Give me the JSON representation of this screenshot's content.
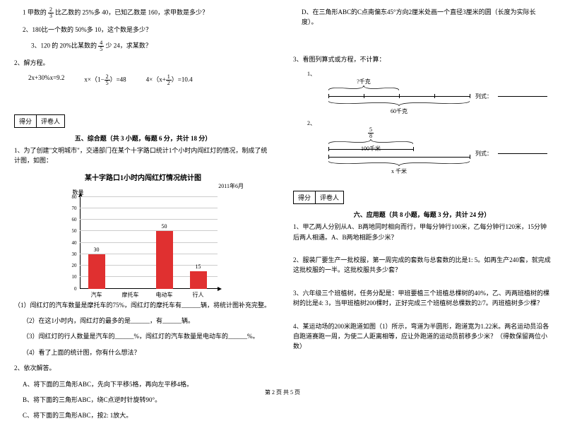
{
  "left": {
    "q1": {
      "prefix": "1 甲数的",
      "frac": {
        "num": "2",
        "den": "3"
      },
      "suffix": "比乙数的 25%多 40，已知乙数是 160，求甲数是多少？"
    },
    "q2": "2、180比一个数的 50%多 10，这个数是多少？",
    "q3": {
      "prefix": "3、120 的 20%比某数的",
      "frac": {
        "num": "4",
        "den": "5"
      },
      "suffix": "少 24，求某数？"
    },
    "q_solve": "2、解方程。",
    "eq1": "2x+30%x=9.2",
    "eq2": {
      "prefix": "x×（1−",
      "frac": {
        "num": "2",
        "den": "5"
      },
      "suffix": "）=48"
    },
    "eq3": {
      "prefix": "4×（x+",
      "frac": {
        "num": "1",
        "den": "2"
      },
      "suffix": "）=10.4"
    },
    "score_labels": [
      "得分",
      "评卷人"
    ],
    "section5_title": "五、综合题（共 3 小题，每题 6 分，共计 18 分）",
    "section5_intro": "1、为了创建\"文明城市\"，交通部门在某个十字路口统计1个小时内闯红灯的情况，制成了统计图，如图：",
    "chart": {
      "title": "某十字路口1小时内闯红灯情况统计图",
      "date": "2011年6月",
      "y_label": "数量",
      "y_ticks": [
        0,
        10,
        20,
        30,
        40,
        50,
        60,
        70,
        80
      ],
      "categories": [
        "汽车",
        "摩托车",
        "电动车",
        "行人"
      ],
      "values": [
        30,
        null,
        50,
        15
      ],
      "bar_color": "#e03030",
      "grid_color": "#cccccc"
    },
    "sub1": "（1）闯红灯的汽车数量是摩托车的75%，闯红灯的摩托车有______辆，将统计图补充完整。",
    "sub2": "（2）在这1小时内，闯红灯的最多的是______，有______辆。",
    "sub3": "（3）闯红灯的行人数量是汽车的______%，闯红灯的汽车数量是电动车的______%。",
    "sub4": "（4）看了上面的统计图，你有什么想法？",
    "q2_title": "2、依次解答。",
    "q2a": "A、将下面的三角形ABC，先向下平移5格，再向左平移4格。",
    "q2b": "B、将下面的三角形ABC，绕C点逆时针旋转90°。",
    "q2c": "C、将下面的三角形ABC，按2: 1放大。"
  },
  "right": {
    "q2d": "D、在三角形ABC的C点南偏东45°方向2厘米处画一个直径3厘米的圆（长度为实际长度）。",
    "q3_title": "3、看图列算式或方程，不计算：",
    "diag1": {
      "num": "1、",
      "top_label": "?千克",
      "bottom_label": "60千克",
      "formula_label": "列式：",
      "segments": 4,
      "top_segments": 2
    },
    "diag2": {
      "num": "2、",
      "frac": {
        "num": "5",
        "den": "8"
      },
      "middle_label": "100千米",
      "bottom_label": "x 千米",
      "formula_label": "列式："
    },
    "score_labels": [
      "得分",
      "评卷人"
    ],
    "section6_title": "六、应用题（共 8 小题，每题 3 分，共计 24 分）",
    "app1": "1、甲乙两人分别从A、B两地同时相向而行，甲每分钟行100米，乙每分钟行120米，15分钟后两人相遇。A、B两地相距多少米？",
    "app2": "2、服装厂要生产一批校服，第一周完成的套数与总套数的比是1: 5。如再生产240套，就完成这批校服的一半。这批校服共多少套？",
    "app3": "3、六年级三个班植树，任务分配是：甲班要植三个班植总棵树的40%，乙、丙两班植树的棵树的比是4: 3，当甲班植树200棵时，正好完成三个班植树总棵数的2/7。丙班植树多少棵？",
    "app4": "4、某运动场的200米跑道如图（1）所示，弯道为半圆形，跑道宽为1.22米。两名运动员沿各自跑道赛跑一周，为使二人距离相等，应让外跑道的运动员前移多少米？（得数保留两位小数）"
  },
  "footer": "第 2 页 共 5 页"
}
